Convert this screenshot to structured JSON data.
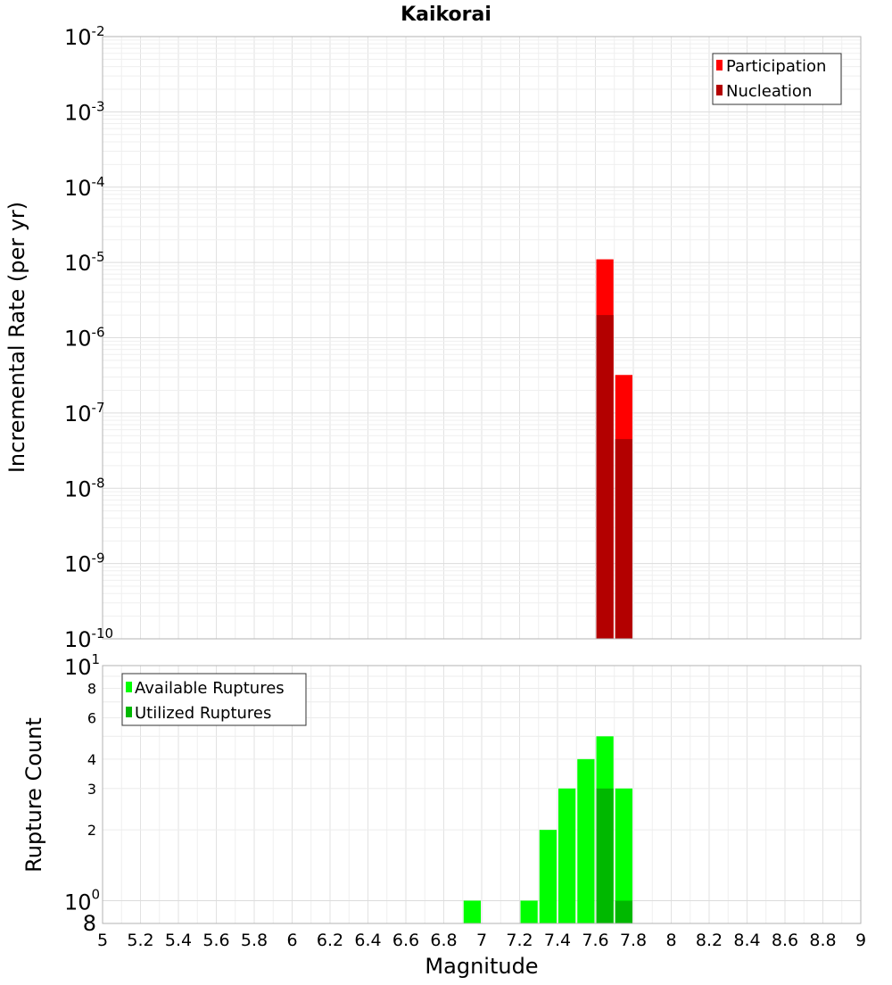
{
  "chart_data": [
    {
      "type": "bar",
      "title": "Kaikorai",
      "ylabel": "Incremental Rate (per yr)",
      "yscale": "log",
      "ylim": [
        1e-10,
        0.01
      ],
      "xlim": [
        5,
        9
      ],
      "bin_width": 0.1,
      "y_ticks": [
        {
          "base": "10",
          "exp": "-2"
        },
        {
          "base": "10",
          "exp": "-3"
        },
        {
          "base": "10",
          "exp": "-4"
        },
        {
          "base": "10",
          "exp": "-5"
        },
        {
          "base": "10",
          "exp": "-6"
        },
        {
          "base": "10",
          "exp": "-7"
        },
        {
          "base": "10",
          "exp": "-8"
        },
        {
          "base": "10",
          "exp": "-9"
        },
        {
          "base": "10",
          "exp": "-10"
        }
      ],
      "legend_position": "top-right",
      "series": [
        {
          "name": "Participation",
          "color": "#ff0000",
          "x": [
            7.65,
            7.75
          ],
          "values": [
            1.1e-05,
            3.2e-07
          ]
        },
        {
          "name": "Nucleation",
          "color": "#b30000",
          "x": [
            7.65,
            7.75
          ],
          "values": [
            2e-06,
            4.5e-08
          ]
        }
      ]
    },
    {
      "type": "bar",
      "xlabel": "Magnitude",
      "ylabel": "Rupture Count",
      "yscale": "log",
      "ylim": [
        0.8,
        10
      ],
      "xlim": [
        5,
        9
      ],
      "bin_width": 0.1,
      "x_ticks": [
        "5",
        "5.2",
        "5.4",
        "5.6",
        "5.8",
        "6",
        "6.2",
        "6.4",
        "6.6",
        "6.8",
        "7",
        "7.2",
        "7.4",
        "7.6",
        "7.8",
        "8",
        "8.2",
        "8.4",
        "8.6",
        "8.8",
        "9"
      ],
      "y_major_ticks": [
        {
          "base": "10",
          "exp": "1"
        },
        {
          "base": "10",
          "exp": "0"
        }
      ],
      "y_minor_ticks": [
        "8",
        "6",
        "4",
        "3",
        "2"
      ],
      "y_bottom_label": "8",
      "legend_position": "top-left",
      "series": [
        {
          "name": "Available Ruptures",
          "color": "#00ff00",
          "x": [
            6.95,
            7.25,
            7.35,
            7.45,
            7.55,
            7.65,
            7.75
          ],
          "values": [
            1,
            1,
            2,
            3,
            4,
            5,
            3
          ]
        },
        {
          "name": "Utilized Ruptures",
          "color": "#00b800",
          "x": [
            7.65,
            7.75
          ],
          "values": [
            3,
            1
          ]
        }
      ]
    }
  ]
}
